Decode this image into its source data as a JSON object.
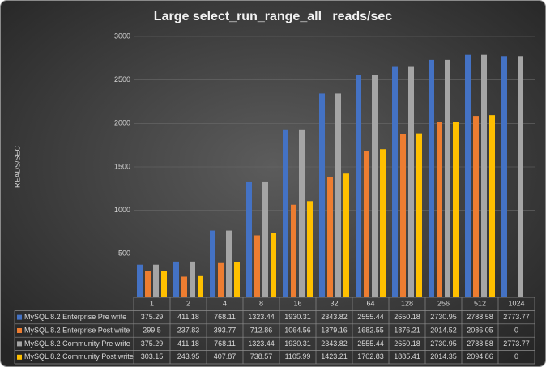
{
  "chart_data": {
    "type": "bar",
    "title": "Large select_run_range_all   reads/sec",
    "y_label": "READS/SEC",
    "categories": [
      "1",
      "2",
      "4",
      "8",
      "16",
      "32",
      "64",
      "128",
      "256",
      "512",
      "1024"
    ],
    "series": [
      {
        "name": "MySQL 8.2 Enterprise Pre write",
        "color": "#4472c4",
        "values": [
          375.29,
          411.18,
          768.11,
          1323.44,
          1930.31,
          2343.82,
          2555.44,
          2650.18,
          2730.95,
          2788.58,
          2773.77
        ]
      },
      {
        "name": "MySQL 8.2 Enterprise Post write",
        "color": "#ed7d31",
        "values": [
          299.5,
          237.83,
          393.77,
          712.86,
          1064.56,
          1379.16,
          1682.55,
          1876.21,
          2014.52,
          2086.05,
          0
        ]
      },
      {
        "name": "MySQL 8.2 Community Pre write",
        "color": "#a5a5a5",
        "values": [
          375.29,
          411.18,
          768.11,
          1323.44,
          1930.31,
          2343.82,
          2555.44,
          2650.18,
          2730.95,
          2788.58,
          2773.77
        ]
      },
      {
        "name": "MySQL 8.2 Community Post write",
        "color": "#ffc000",
        "values": [
          303.15,
          243.95,
          407.87,
          738.57,
          1105.99,
          1423.21,
          1702.83,
          1885.41,
          2014.35,
          2094.86,
          0
        ]
      }
    ],
    "ylim": [
      0,
      3000
    ],
    "yticks": [
      500,
      1000,
      1500,
      2000,
      2500,
      3000
    ],
    "grid": true
  }
}
